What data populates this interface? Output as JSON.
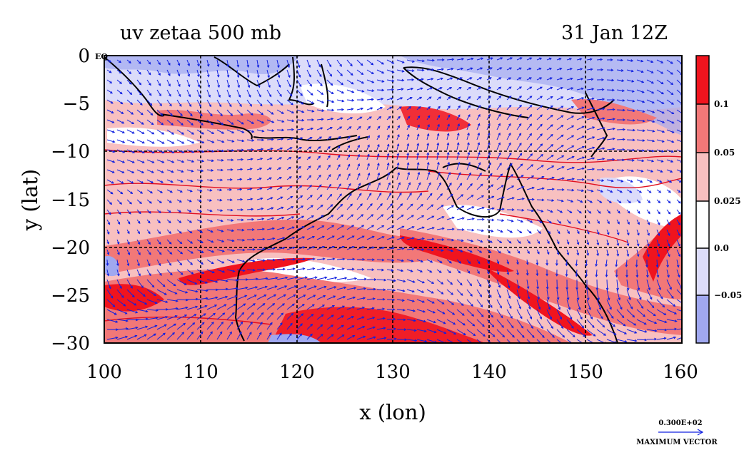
{
  "plot": {
    "title_left": "uv zetaa 500 mb",
    "title_right": "31 Jan 12Z",
    "x_label": "x (lon)",
    "y_label": "y (lat)",
    "eq_marker": "EQ",
    "x_ticks": [
      "100",
      "110",
      "120",
      "130",
      "140",
      "150",
      "160"
    ],
    "y_ticks": [
      "0",
      "−5",
      "−10",
      "−15",
      "−20",
      "−25",
      "−30"
    ],
    "x_tick_values": [
      100,
      110,
      120,
      130,
      140,
      150,
      160
    ],
    "y_tick_values": [
      0,
      -5,
      -10,
      -15,
      -20,
      -25,
      -30
    ],
    "x_range": [
      100,
      160
    ],
    "y_range": [
      -30,
      0
    ]
  },
  "colorbar": {
    "labels": [
      "0.1",
      "0.05",
      "0.025",
      "0.0",
      "−0.05"
    ],
    "levels": [
      0.1,
      0.05,
      0.025,
      0.0,
      -0.05
    ],
    "colors": [
      "#f0141e",
      "#f27878",
      "#f8c0c0",
      "#ffffff",
      "#dcdcfa",
      "#a0a8f0"
    ]
  },
  "vector_key": {
    "value": "0.300E+02",
    "label": "MAXIMUM VECTOR"
  },
  "colors": {
    "strong_red": "#f0141e",
    "medium_red": "#f27878",
    "light_red": "#f8c0c0",
    "light_blue": "#dcdcfa",
    "blue": "#a0a8f0",
    "vector": "#1020e0",
    "coast": "#000000"
  }
}
